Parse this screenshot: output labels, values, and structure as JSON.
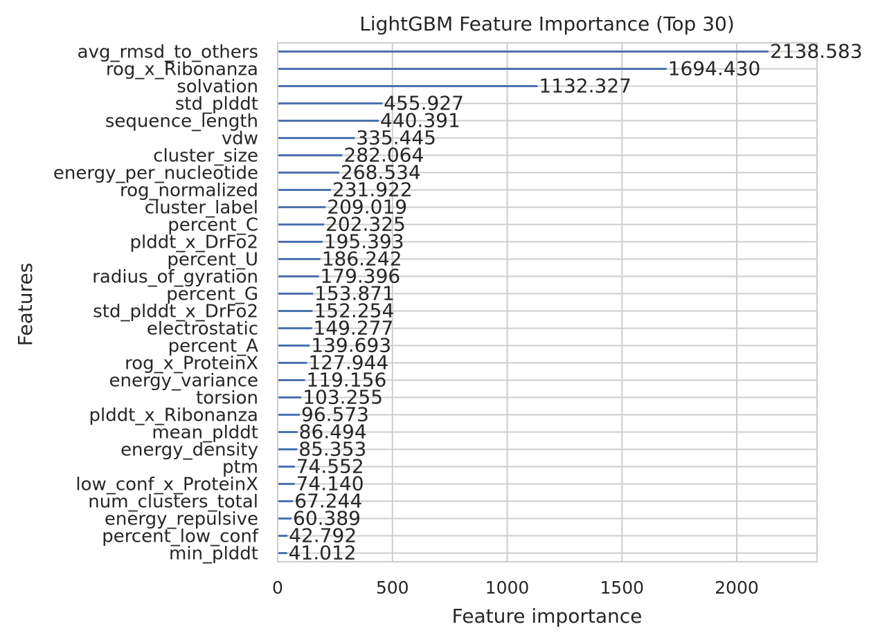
{
  "chart_data": {
    "type": "bar",
    "orientation": "horizontal",
    "title": "LightGBM Feature Importance (Top 30)",
    "xlabel": "Feature importance",
    "ylabel": "Features",
    "xlim": [
      0,
      2350
    ],
    "xticks": [
      0,
      500,
      1000,
      1500,
      2000
    ],
    "xtick_labels": [
      "0",
      "500",
      "1000",
      "1500",
      "2000"
    ],
    "grid": true,
    "bar_color": "#4c72b0",
    "categories": [
      "avg_rmsd_to_others",
      "rog_x_Ribonanza",
      "solvation",
      "std_plddt",
      "sequence_length",
      "vdw",
      "cluster_size",
      "energy_per_nucleotide",
      "rog_normalized",
      "cluster_label",
      "percent_C",
      "plddt_x_DrFo2",
      "percent_U",
      "radius_of_gyration",
      "percent_G",
      "std_plddt_x_DrFo2",
      "electrostatic",
      "percent_A",
      "rog_x_ProteinX",
      "energy_variance",
      "torsion",
      "plddt_x_Ribonanza",
      "mean_plddt",
      "energy_density",
      "ptm",
      "low_conf_x_ProteinX",
      "num_clusters_total",
      "energy_repulsive",
      "percent_low_conf",
      "min_plddt"
    ],
    "values": [
      2138.583,
      1694.43,
      1132.327,
      455.927,
      440.391,
      335.445,
      282.064,
      268.534,
      231.922,
      209.019,
      202.325,
      195.393,
      186.242,
      179.396,
      153.871,
      152.254,
      149.277,
      139.693,
      127.944,
      119.156,
      103.255,
      96.573,
      86.494,
      85.353,
      74.552,
      74.14,
      67.244,
      60.389,
      42.792,
      41.012
    ],
    "value_labels": [
      "2138.583",
      "1694.430",
      "1132.327",
      "455.927",
      "440.391",
      "335.445",
      "282.064",
      "268.534",
      "231.922",
      "209.019",
      "202.325",
      "195.393",
      "186.242",
      "179.396",
      "153.871",
      "152.254",
      "149.277",
      "139.693",
      "127.944",
      "119.156",
      "103.255",
      "96.573",
      "86.494",
      "85.353",
      "74.552",
      "74.140",
      "67.244",
      "60.389",
      "42.792",
      "41.012"
    ]
  }
}
